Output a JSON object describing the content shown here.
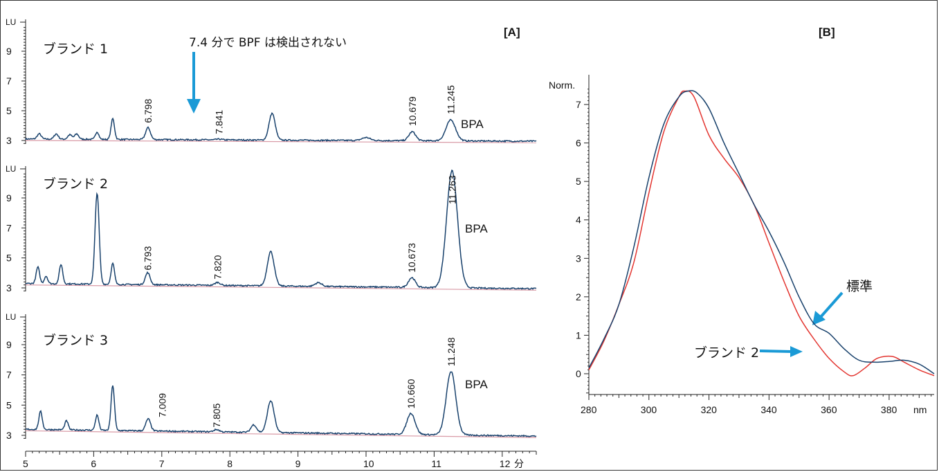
{
  "panel_a": {
    "label": "[A]",
    "x_unit": "分",
    "y_unit": "LU",
    "annotation": "7.4 分で BPF は検出されない",
    "bpa_label": "BPA"
  },
  "panel_b": {
    "label": "[B]",
    "y_unit": "Norm.",
    "x_unit": "nm",
    "standard_label": "標準",
    "brand2_label": "ブランド 2"
  },
  "colors": {
    "trace": "#17406b",
    "baseline": "#d99aa6",
    "standard": "#17406b",
    "brand2": "#e3342f",
    "arrow": "#1a9ad6"
  },
  "chart_data": [
    {
      "type": "line",
      "title": "[A] ブランド 1",
      "name": "ブランド 1",
      "xlabel": "分",
      "ylabel": "LU",
      "xlim": [
        5,
        12.5
      ],
      "xticks": [
        5,
        6,
        7,
        8,
        9,
        10,
        11,
        12
      ],
      "yticks": [
        3,
        5,
        7,
        9
      ],
      "ylim": [
        2.5,
        11
      ],
      "baseline_start": 3.0,
      "baseline_end": 2.85,
      "peaks": [
        {
          "x": 5.2,
          "y": 3.35,
          "w": 0.03
        },
        {
          "x": 5.45,
          "y": 3.35,
          "w": 0.03
        },
        {
          "x": 5.65,
          "y": 3.3,
          "w": 0.03
        },
        {
          "x": 5.75,
          "y": 3.35,
          "w": 0.03
        },
        {
          "x": 6.05,
          "y": 3.5,
          "w": 0.025
        },
        {
          "x": 6.28,
          "y": 4.4,
          "w": 0.025
        },
        {
          "x": 6.798,
          "y": 3.8,
          "w": 0.035
        },
        {
          "x": 7.841,
          "y": 3.05,
          "w": 0.04
        },
        {
          "x": 8.62,
          "y": 4.8,
          "w": 0.045
        },
        {
          "x": 10.0,
          "y": 3.2,
          "w": 0.06
        },
        {
          "x": 10.679,
          "y": 3.6,
          "w": 0.05
        },
        {
          "x": 11.245,
          "y": 4.4,
          "w": 0.07
        }
      ],
      "peak_labels": [
        {
          "x": 6.798,
          "label": "6.798"
        },
        {
          "x": 7.841,
          "label": "7.841"
        },
        {
          "x": 10.679,
          "label": "10.679"
        },
        {
          "x": 11.245,
          "label": "11.245"
        }
      ]
    },
    {
      "type": "line",
      "title": "[A] ブランド 2",
      "name": "ブランド 2",
      "xlabel": "分",
      "ylabel": "LU",
      "xlim": [
        5,
        12.5
      ],
      "xticks": [
        5,
        6,
        7,
        8,
        9,
        10,
        11,
        12
      ],
      "yticks": [
        3,
        5,
        7,
        9
      ],
      "ylim": [
        2.5,
        11
      ],
      "baseline_start": 3.2,
      "baseline_end": 2.85,
      "peaks": [
        {
          "x": 5.18,
          "y": 4.1,
          "w": 0.025
        },
        {
          "x": 5.3,
          "y": 3.5,
          "w": 0.025
        },
        {
          "x": 5.52,
          "y": 4.3,
          "w": 0.025
        },
        {
          "x": 6.05,
          "y": 9.1,
          "w": 0.03
        },
        {
          "x": 6.28,
          "y": 4.4,
          "w": 0.025
        },
        {
          "x": 6.793,
          "y": 3.8,
          "w": 0.035
        },
        {
          "x": 7.82,
          "y": 3.2,
          "w": 0.04
        },
        {
          "x": 8.6,
          "y": 5.3,
          "w": 0.05
        },
        {
          "x": 9.3,
          "y": 3.25,
          "w": 0.05
        },
        {
          "x": 10.673,
          "y": 3.65,
          "w": 0.05
        },
        {
          "x": 11.263,
          "y": 10.8,
          "w": 0.08
        }
      ],
      "peak_labels": [
        {
          "x": 6.793,
          "label": "6.793"
        },
        {
          "x": 7.82,
          "label": "7.820"
        },
        {
          "x": 10.673,
          "label": "10.673"
        },
        {
          "x": 11.263,
          "label": "11.263"
        }
      ]
    },
    {
      "type": "line",
      "title": "[A] ブランド 3",
      "name": "ブランド 3",
      "xlabel": "分",
      "ylabel": "LU",
      "xlim": [
        5,
        12.5
      ],
      "xticks": [
        5,
        6,
        7,
        8,
        9,
        10,
        11,
        12
      ],
      "yticks": [
        3,
        5,
        7,
        9
      ],
      "ylim": [
        2.5,
        11
      ],
      "baseline_start": 3.3,
      "baseline_end": 2.85,
      "peaks": [
        {
          "x": 5.22,
          "y": 4.2,
          "w": 0.025
        },
        {
          "x": 5.6,
          "y": 3.6,
          "w": 0.025
        },
        {
          "x": 6.05,
          "y": 4.0,
          "w": 0.025
        },
        {
          "x": 6.28,
          "y": 6.0,
          "w": 0.025
        },
        {
          "x": 6.8,
          "y": 3.8,
          "w": 0.035
        },
        {
          "x": 7.009,
          "y": 3.0,
          "w": 0.04
        },
        {
          "x": 7.805,
          "y": 3.15,
          "w": 0.04
        },
        {
          "x": 8.35,
          "y": 3.5,
          "w": 0.04
        },
        {
          "x": 8.6,
          "y": 5.1,
          "w": 0.05
        },
        {
          "x": 9.3,
          "y": 3.0,
          "w": 0.05
        },
        {
          "x": 10.2,
          "y": 3.0,
          "w": 0.05
        },
        {
          "x": 10.66,
          "y": 4.4,
          "w": 0.06
        },
        {
          "x": 11.248,
          "y": 7.2,
          "w": 0.07
        }
      ],
      "peak_labels": [
        {
          "x": 7.009,
          "label": "7.009"
        },
        {
          "x": 7.805,
          "label": "7.805"
        },
        {
          "x": 10.66,
          "label": "10.660"
        },
        {
          "x": 11.248,
          "label": "11.248"
        }
      ]
    },
    {
      "type": "line",
      "title": "[B]",
      "xlabel": "nm",
      "ylabel": "Norm.",
      "xlim": [
        280,
        395
      ],
      "ylim": [
        -0.6,
        7.5
      ],
      "xticks": [
        280,
        300,
        320,
        340,
        360,
        380
      ],
      "yticks": [
        0,
        1,
        2,
        3,
        4,
        5,
        6,
        7
      ],
      "series": [
        {
          "name": "標準",
          "x": [
            280,
            285,
            290,
            295,
            300,
            305,
            310,
            313,
            316,
            320,
            325,
            330,
            335,
            340,
            345,
            350,
            355,
            360,
            365,
            370,
            375,
            380,
            385,
            390,
            395
          ],
          "y": [
            0.15,
            0.9,
            1.8,
            3.3,
            5.1,
            6.5,
            7.2,
            7.35,
            7.3,
            6.9,
            6.0,
            5.2,
            4.4,
            3.7,
            2.9,
            2.0,
            1.3,
            1.05,
            0.65,
            0.35,
            0.3,
            0.32,
            0.35,
            0.25,
            0.0
          ]
        },
        {
          "name": "ブランド 2",
          "x": [
            280,
            285,
            290,
            295,
            300,
            305,
            310,
            312,
            315,
            320,
            325,
            330,
            335,
            340,
            345,
            350,
            355,
            360,
            365,
            368,
            372,
            376,
            381,
            385,
            390,
            395
          ],
          "y": [
            0.1,
            0.85,
            1.8,
            2.9,
            4.7,
            6.3,
            7.2,
            7.35,
            7.2,
            6.2,
            5.6,
            5.1,
            4.4,
            3.4,
            2.4,
            1.5,
            0.9,
            0.4,
            0.05,
            -0.05,
            0.15,
            0.4,
            0.45,
            0.3,
            0.1,
            -0.05
          ]
        }
      ]
    }
  ]
}
